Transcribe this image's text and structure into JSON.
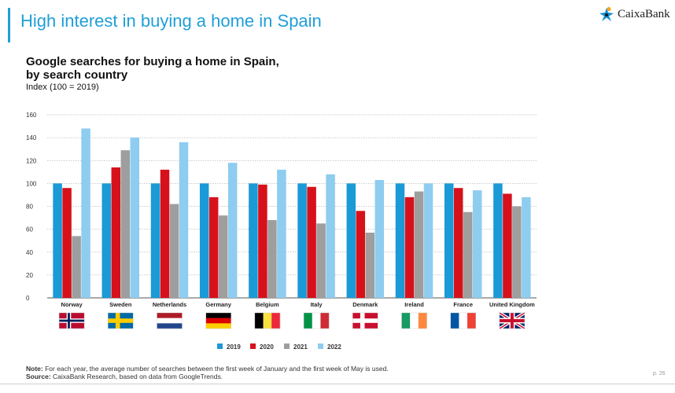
{
  "slide": {
    "title": "High interest in buying a home in Spain",
    "page": "p. 26"
  },
  "logo": {
    "text": "CaixaBank"
  },
  "note": {
    "note_label": "Note:",
    "note_text": " For each year, the average number of searches between the first week of January and the first week of May is used.",
    "source_label": "Source:",
    "source_text": " CaixaBank Research, based on data from GoogleTrends."
  },
  "chart_data": {
    "type": "bar",
    "title": "Google searches for buying a home in Spain,",
    "title_line2": "by search country",
    "subtitle": "Index (100 = 2019)",
    "xlabel": "",
    "ylabel": "",
    "ylim": [
      0,
      160
    ],
    "yticks": [
      0,
      20,
      40,
      60,
      80,
      100,
      120,
      140,
      160
    ],
    "grid": true,
    "legend_position": "bottom-center",
    "categories": [
      "Norway",
      "Sweden",
      "Netherlands",
      "Germany",
      "Belgium",
      "Italy",
      "Denmark",
      "Ireland",
      "France",
      "United Kingdom"
    ],
    "series": [
      {
        "name": "2019",
        "color": "#1a9ad6",
        "values": [
          100,
          100,
          100,
          100,
          100,
          100,
          100,
          100,
          100,
          100
        ]
      },
      {
        "name": "2020",
        "color": "#d7111b",
        "values": [
          96,
          114,
          112,
          88,
          99,
          97,
          76,
          88,
          96,
          91
        ]
      },
      {
        "name": "2021",
        "color": "#9e9e9e",
        "values": [
          54,
          129,
          82,
          72,
          68,
          65,
          57,
          93,
          75,
          80
        ]
      },
      {
        "name": "2022",
        "color": "#8ecdf0",
        "values": [
          148,
          140,
          136,
          118,
          112,
          108,
          103,
          100,
          94,
          88
        ]
      }
    ]
  }
}
